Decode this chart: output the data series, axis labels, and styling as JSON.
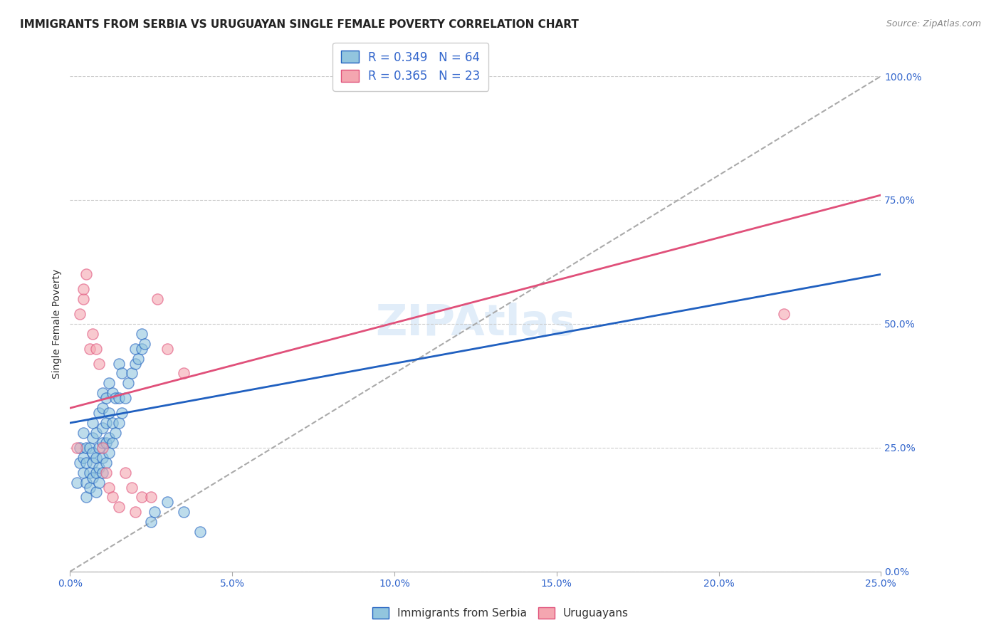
{
  "title": "IMMIGRANTS FROM SERBIA VS URUGUAYAN SINGLE FEMALE POVERTY CORRELATION CHART",
  "source": "Source: ZipAtlas.com",
  "xlabel": "",
  "ylabel": "Single Female Poverty",
  "xlim": [
    0.0,
    0.25
  ],
  "ylim": [
    0.0,
    1.0
  ],
  "xtick_labels": [
    "0.0%",
    "5.0%",
    "10.0%",
    "15.0%",
    "20.0%",
    "25.0%"
  ],
  "xtick_vals": [
    0.0,
    0.05,
    0.1,
    0.15,
    0.2,
    0.25
  ],
  "ytick_labels": [
    "0.0%",
    "25.0%",
    "50.0%",
    "75.0%",
    "100.0%"
  ],
  "ytick_vals": [
    0.0,
    0.25,
    0.5,
    0.75,
    1.0
  ],
  "legend1_R": "0.349",
  "legend1_N": "64",
  "legend2_R": "0.365",
  "legend2_N": "23",
  "color_blue": "#92C5DE",
  "color_pink": "#F4A6B0",
  "line_blue": "#2060C0",
  "line_pink": "#E0507A",
  "line_gray": "#AAAAAA",
  "watermark": "ZIPAtlas",
  "serbia_x": [
    0.002,
    0.003,
    0.003,
    0.004,
    0.004,
    0.004,
    0.005,
    0.005,
    0.005,
    0.005,
    0.006,
    0.006,
    0.006,
    0.007,
    0.007,
    0.007,
    0.007,
    0.007,
    0.008,
    0.008,
    0.008,
    0.008,
    0.009,
    0.009,
    0.009,
    0.009,
    0.01,
    0.01,
    0.01,
    0.01,
    0.01,
    0.01,
    0.011,
    0.011,
    0.011,
    0.011,
    0.012,
    0.012,
    0.012,
    0.012,
    0.013,
    0.013,
    0.013,
    0.014,
    0.014,
    0.015,
    0.015,
    0.015,
    0.016,
    0.016,
    0.017,
    0.018,
    0.019,
    0.02,
    0.02,
    0.021,
    0.022,
    0.022,
    0.023,
    0.025,
    0.026,
    0.03,
    0.035,
    0.04
  ],
  "serbia_y": [
    0.18,
    0.22,
    0.25,
    0.2,
    0.23,
    0.28,
    0.15,
    0.18,
    0.22,
    0.25,
    0.17,
    0.2,
    0.25,
    0.19,
    0.22,
    0.24,
    0.27,
    0.3,
    0.16,
    0.2,
    0.23,
    0.28,
    0.18,
    0.21,
    0.25,
    0.32,
    0.2,
    0.23,
    0.26,
    0.29,
    0.33,
    0.36,
    0.22,
    0.26,
    0.3,
    0.35,
    0.24,
    0.27,
    0.32,
    0.38,
    0.26,
    0.3,
    0.36,
    0.28,
    0.35,
    0.3,
    0.35,
    0.42,
    0.32,
    0.4,
    0.35,
    0.38,
    0.4,
    0.42,
    0.45,
    0.43,
    0.45,
    0.48,
    0.46,
    0.1,
    0.12,
    0.14,
    0.12,
    0.08
  ],
  "uruguay_x": [
    0.002,
    0.003,
    0.004,
    0.004,
    0.005,
    0.006,
    0.007,
    0.008,
    0.009,
    0.01,
    0.011,
    0.012,
    0.013,
    0.015,
    0.017,
    0.019,
    0.02,
    0.022,
    0.025,
    0.027,
    0.03,
    0.035,
    0.22
  ],
  "uruguay_y": [
    0.25,
    0.52,
    0.55,
    0.57,
    0.6,
    0.45,
    0.48,
    0.45,
    0.42,
    0.25,
    0.2,
    0.17,
    0.15,
    0.13,
    0.2,
    0.17,
    0.12,
    0.15,
    0.15,
    0.55,
    0.45,
    0.4,
    0.52
  ],
  "title_fontsize": 11,
  "source_fontsize": 9,
  "axis_label_fontsize": 10,
  "tick_fontsize": 10
}
